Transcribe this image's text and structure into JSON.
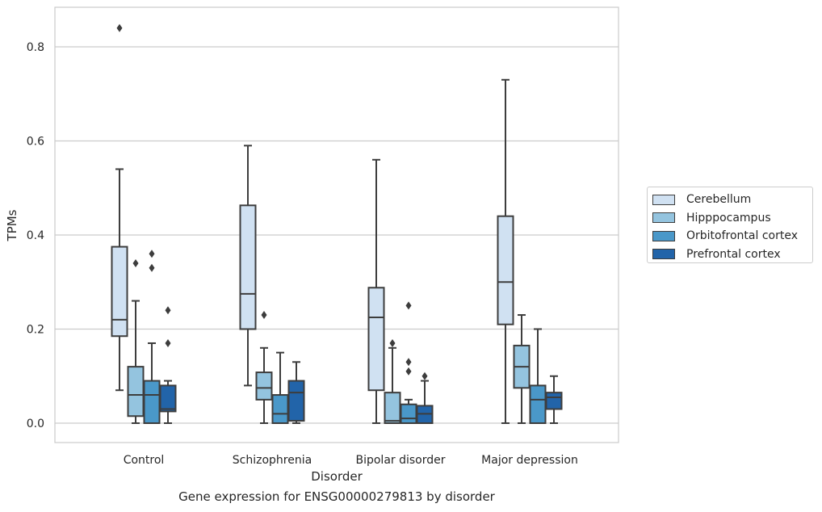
{
  "chart_data": {
    "type": "box",
    "caption": "Gene expression for ENSG00000279813 by disorder",
    "xlabel": "Disorder",
    "ylabel": "TPMs",
    "ylim": [
      -0.04,
      0.885
    ],
    "yticks": [
      "0.0",
      "0.2",
      "0.4",
      "0.6",
      "0.8"
    ],
    "ytick_values": [
      0.0,
      0.2,
      0.4,
      0.6,
      0.8
    ],
    "categories": [
      "Control",
      "Schizophrenia",
      "Bipolar disorder",
      "Major depression"
    ],
    "grid": "horizontal",
    "legend_position": "right",
    "series": [
      {
        "name": "Cerebellum",
        "color": "#d0e1f2",
        "boxes": [
          {
            "whisker_low": 0.07,
            "q1": 0.185,
            "median": 0.22,
            "q3": 0.375,
            "whisker_high": 0.54,
            "outliers": [
              0.84
            ]
          },
          {
            "whisker_low": 0.08,
            "q1": 0.2,
            "median": 0.275,
            "q3": 0.463,
            "whisker_high": 0.59,
            "outliers": []
          },
          {
            "whisker_low": 0.0,
            "q1": 0.07,
            "median": 0.225,
            "q3": 0.288,
            "whisker_high": 0.56,
            "outliers": []
          },
          {
            "whisker_low": 0.0,
            "q1": 0.21,
            "median": 0.3,
            "q3": 0.44,
            "whisker_high": 0.73,
            "outliers": []
          }
        ]
      },
      {
        "name": "Hipppocampus",
        "color": "#94c4df",
        "boxes": [
          {
            "whisker_low": 0.0,
            "q1": 0.015,
            "median": 0.06,
            "q3": 0.12,
            "whisker_high": 0.26,
            "outliers": [
              0.34
            ]
          },
          {
            "whisker_low": 0.0,
            "q1": 0.05,
            "median": 0.075,
            "q3": 0.108,
            "whisker_high": 0.16,
            "outliers": [
              0.23
            ]
          },
          {
            "whisker_low": 0.0,
            "q1": 0.0,
            "median": 0.005,
            "q3": 0.065,
            "whisker_high": 0.16,
            "outliers": [
              0.17
            ]
          },
          {
            "whisker_low": 0.0,
            "q1": 0.075,
            "median": 0.12,
            "q3": 0.165,
            "whisker_high": 0.23,
            "outliers": []
          }
        ]
      },
      {
        "name": "Orbitofrontal cortex",
        "color": "#4a98c9",
        "boxes": [
          {
            "whisker_low": 0.0,
            "q1": 0.0,
            "median": 0.06,
            "q3": 0.09,
            "whisker_high": 0.17,
            "outliers": [
              0.33,
              0.36
            ]
          },
          {
            "whisker_low": 0.0,
            "q1": 0.0,
            "median": 0.02,
            "q3": 0.06,
            "whisker_high": 0.15,
            "outliers": []
          },
          {
            "whisker_low": 0.0,
            "q1": 0.0,
            "median": 0.01,
            "q3": 0.04,
            "whisker_high": 0.05,
            "outliers": [
              0.11,
              0.13,
              0.25
            ]
          },
          {
            "whisker_low": 0.0,
            "q1": 0.0,
            "median": 0.05,
            "q3": 0.08,
            "whisker_high": 0.2,
            "outliers": []
          }
        ]
      },
      {
        "name": "Prefrontal cortex",
        "color": "#2264a9",
        "boxes": [
          {
            "whisker_low": 0.0,
            "q1": 0.025,
            "median": 0.03,
            "q3": 0.08,
            "whisker_high": 0.09,
            "outliers": [
              0.17,
              0.24
            ]
          },
          {
            "whisker_low": 0.0,
            "q1": 0.005,
            "median": 0.065,
            "q3": 0.09,
            "whisker_high": 0.13,
            "outliers": []
          },
          {
            "whisker_low": 0.0,
            "q1": 0.0,
            "median": 0.02,
            "q3": 0.037,
            "whisker_high": 0.09,
            "outliers": [
              0.1
            ]
          },
          {
            "whisker_low": 0.0,
            "q1": 0.03,
            "median": 0.055,
            "q3": 0.065,
            "whisker_high": 0.1,
            "outliers": []
          }
        ]
      }
    ]
  }
}
